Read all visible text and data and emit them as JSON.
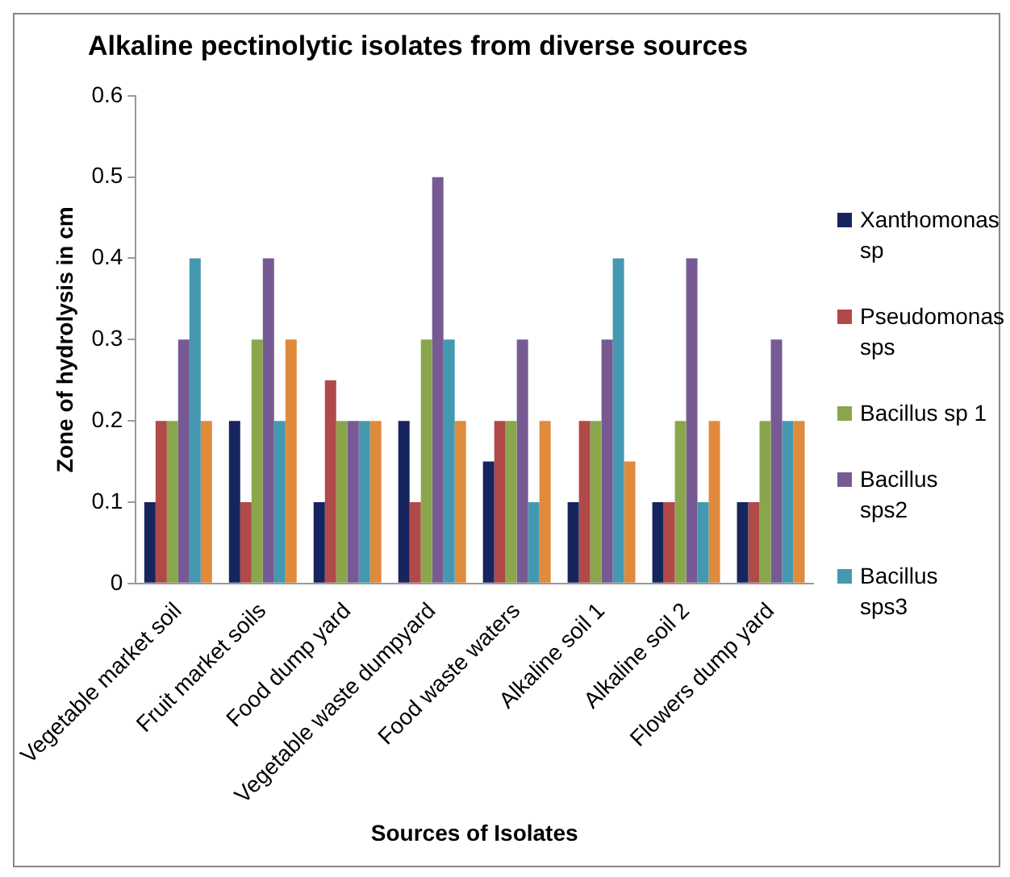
{
  "chart_data": {
    "type": "bar",
    "title": "Alkaline pectinolytic isolates from diverse sources",
    "xlabel": "Sources of Isolates",
    "ylabel": "Zone of hydrolysis in cm",
    "categories": [
      "Vegetable market soil",
      "Fruit market soils",
      "Food dump yard",
      "Vegetable waste dumpyard",
      "Food waste waters",
      "Alkaline soil 1",
      "Alkaline soil 2",
      "Flowers dump yard"
    ],
    "series": [
      {
        "name": "Xanthomonas sp",
        "color": "#17255e",
        "values": [
          0.1,
          0.2,
          0.1,
          0.2,
          0.15,
          0.1,
          0.1,
          0.1
        ]
      },
      {
        "name": "Pseudomonas sps",
        "color": "#b04a48",
        "values": [
          0.2,
          0.1,
          0.25,
          0.1,
          0.2,
          0.2,
          0.1,
          0.1
        ]
      },
      {
        "name": "Bacillus sp 1",
        "color": "#8aa64c",
        "values": [
          0.2,
          0.3,
          0.2,
          0.3,
          0.2,
          0.2,
          0.2,
          0.2
        ]
      },
      {
        "name": "Bacillus sps2",
        "color": "#775a93",
        "values": [
          0.3,
          0.4,
          0.2,
          0.5,
          0.3,
          0.3,
          0.4,
          0.3
        ]
      },
      {
        "name": "Bacillus sps3",
        "color": "#4499b0",
        "values": [
          0.4,
          0.2,
          0.2,
          0.3,
          0.1,
          0.4,
          0.1,
          0.2
        ]
      },
      {
        "color": "#e08a3c",
        "values": [
          0.2,
          0.3,
          0.2,
          0.2,
          0.2,
          0.15,
          0.2,
          0.2
        ]
      }
    ],
    "ylim": [
      0,
      0.6
    ],
    "yticks": [
      0,
      0.1,
      0.2,
      0.3,
      0.4,
      0.5,
      0.6
    ],
    "grid": false,
    "legend": "right"
  }
}
